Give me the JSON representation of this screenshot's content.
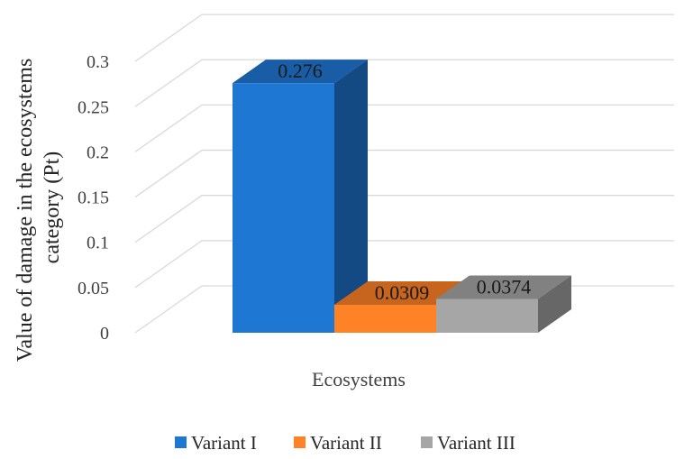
{
  "chart_data": {
    "type": "bar",
    "categories": [
      "Ecosystems"
    ],
    "series": [
      {
        "name": "Variant I",
        "values": [
          0.276
        ],
        "color": "#1F77D4",
        "label": "0.276"
      },
      {
        "name": "Variant II",
        "values": [
          0.0309
        ],
        "color": "#FF8226",
        "label": "0.0309"
      },
      {
        "name": "Variant III",
        "values": [
          0.0374
        ],
        "color": "#A6A6A6",
        "label": "0.0374"
      }
    ],
    "ylabel": "Value of damage in the ecosystems category (Pt)",
    "ylabel_lines": [
      "Value of damage in the ecosystems",
      "category (Pt)"
    ],
    "xlabel": "Ecosystems",
    "ylim": [
      0,
      0.3
    ],
    "yticks": [
      0,
      0.05,
      0.1,
      0.15,
      0.2,
      0.25,
      0.3
    ],
    "ytick_labels": [
      "0",
      "0.05",
      "0.1",
      "0.15",
      "0.2",
      "0.25",
      "0.3"
    ],
    "grid": true,
    "style": "3d-clustered-column",
    "legend_position": "bottom"
  }
}
